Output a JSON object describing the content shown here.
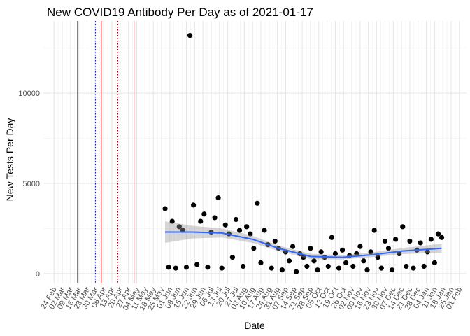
{
  "chart_data": {
    "type": "scatter",
    "title": "New COVID19 Antibody Per Day as of 2021-01-17",
    "x_label": "Date",
    "y_label": "New Tests Per Day",
    "xlim": [
      "2020-02-15",
      "2021-02-07"
    ],
    "ylim": [
      -550,
      14000
    ],
    "yticks": [
      0,
      5000,
      10000
    ],
    "xticks": [
      {
        "value": "2020-02-24",
        "label": "24 Feb"
      },
      {
        "value": "2020-03-02",
        "label": "02 Mar"
      },
      {
        "value": "2020-03-09",
        "label": "09 Mar"
      },
      {
        "value": "2020-03-16",
        "label": "16 Mar"
      },
      {
        "value": "2020-03-23",
        "label": "23 Mar"
      },
      {
        "value": "2020-03-30",
        "label": "30 Mar"
      },
      {
        "value": "2020-04-06",
        "label": "06 Apr"
      },
      {
        "value": "2020-04-13",
        "label": "13 Apr"
      },
      {
        "value": "2020-04-20",
        "label": "20 Apr"
      },
      {
        "value": "2020-04-27",
        "label": "27 Apr"
      },
      {
        "value": "2020-05-04",
        "label": "04 May"
      },
      {
        "value": "2020-05-11",
        "label": "11 May"
      },
      {
        "value": "2020-05-18",
        "label": "18 May"
      },
      {
        "value": "2020-05-25",
        "label": "25 May"
      },
      {
        "value": "2020-06-01",
        "label": "01 Jun"
      },
      {
        "value": "2020-06-08",
        "label": "08 Jun"
      },
      {
        "value": "2020-06-15",
        "label": "15 Jun"
      },
      {
        "value": "2020-06-22",
        "label": "22 Jun"
      },
      {
        "value": "2020-06-29",
        "label": "29 Jun"
      },
      {
        "value": "2020-07-06",
        "label": "06 Jul"
      },
      {
        "value": "2020-07-13",
        "label": "13 Jul"
      },
      {
        "value": "2020-07-20",
        "label": "20 Jul"
      },
      {
        "value": "2020-07-27",
        "label": "27 Jul"
      },
      {
        "value": "2020-08-03",
        "label": "03 Aug"
      },
      {
        "value": "2020-08-10",
        "label": "10 Aug"
      },
      {
        "value": "2020-08-17",
        "label": "17 Aug"
      },
      {
        "value": "2020-08-24",
        "label": "24 Aug"
      },
      {
        "value": "2020-08-31",
        "label": "31 Aug"
      },
      {
        "value": "2020-09-07",
        "label": "07 Sep"
      },
      {
        "value": "2020-09-14",
        "label": "14 Sep"
      },
      {
        "value": "2020-09-21",
        "label": "21 Sep"
      },
      {
        "value": "2020-09-28",
        "label": "28 Sep"
      },
      {
        "value": "2020-10-05",
        "label": "05 Oct"
      },
      {
        "value": "2020-10-12",
        "label": "12 Oct"
      },
      {
        "value": "2020-10-19",
        "label": "19 Oct"
      },
      {
        "value": "2020-10-26",
        "label": "26 Oct"
      },
      {
        "value": "2020-11-02",
        "label": "02 Nov"
      },
      {
        "value": "2020-11-09",
        "label": "09 Nov"
      },
      {
        "value": "2020-11-16",
        "label": "16 Nov"
      },
      {
        "value": "2020-11-23",
        "label": "23 Nov"
      },
      {
        "value": "2020-11-30",
        "label": "30 Nov"
      },
      {
        "value": "2020-12-07",
        "label": "07 Dec"
      },
      {
        "value": "2020-12-14",
        "label": "14 Dec"
      },
      {
        "value": "2020-12-21",
        "label": "21 Dec"
      },
      {
        "value": "2020-12-28",
        "label": "28 Dec"
      },
      {
        "value": "2021-01-04",
        "label": "04 Jan"
      },
      {
        "value": "2021-01-11",
        "label": "11 Jan"
      },
      {
        "value": "2021-01-18",
        "label": "18 Jan"
      },
      {
        "value": "2021-01-25",
        "label": "25 Jan"
      },
      {
        "value": "2021-02-01",
        "label": "01 Feb"
      }
    ],
    "grid": true,
    "vlines": [
      {
        "x": "2020-03-15",
        "color": "#000000",
        "dashed": false
      },
      {
        "x": "2020-03-30",
        "color": "#00008b",
        "dashed": true
      },
      {
        "x": "2020-04-04",
        "color": "#cc0000",
        "dashed": false
      },
      {
        "x": "2020-04-18",
        "color": "#8b0000",
        "dashed": true
      },
      {
        "x": "2020-05-02",
        "color": "#ffb6c1",
        "dashed": false
      }
    ],
    "series": [
      {
        "type": "scatter",
        "color": "#000000",
        "x": [
          "2020-05-28",
          "2020-05-31",
          "2020-06-03",
          "2020-06-06",
          "2020-06-09",
          "2020-06-12",
          "2020-06-15",
          "2020-06-18",
          "2020-06-21",
          "2020-06-24",
          "2020-06-27",
          "2020-06-30",
          "2020-07-03",
          "2020-07-06",
          "2020-07-09",
          "2020-07-12",
          "2020-07-15",
          "2020-07-18",
          "2020-07-21",
          "2020-07-24",
          "2020-07-27",
          "2020-07-30",
          "2020-08-02",
          "2020-08-05",
          "2020-08-08",
          "2020-08-11",
          "2020-08-14",
          "2020-08-17",
          "2020-08-20",
          "2020-08-23",
          "2020-08-26",
          "2020-08-29",
          "2020-09-01",
          "2020-09-04",
          "2020-09-07",
          "2020-09-10",
          "2020-09-13",
          "2020-09-16",
          "2020-09-19",
          "2020-09-22",
          "2020-09-25",
          "2020-09-28",
          "2020-10-01",
          "2020-10-04",
          "2020-10-07",
          "2020-10-10",
          "2020-10-13",
          "2020-10-16",
          "2020-10-19",
          "2020-10-22",
          "2020-10-25",
          "2020-10-28",
          "2020-10-31",
          "2020-11-03",
          "2020-11-06",
          "2020-11-09",
          "2020-11-12",
          "2020-11-15",
          "2020-11-18",
          "2020-11-21",
          "2020-11-24",
          "2020-11-27",
          "2020-11-30",
          "2020-12-03",
          "2020-12-06",
          "2020-12-09",
          "2020-12-12",
          "2020-12-15",
          "2020-12-18",
          "2020-12-21",
          "2020-12-24",
          "2020-12-27",
          "2020-12-30",
          "2021-01-02",
          "2021-01-05",
          "2021-01-08",
          "2021-01-11",
          "2021-01-14",
          "2021-01-17"
        ],
        "values": [
          3600,
          350,
          2900,
          300,
          2600,
          2400,
          350,
          13200,
          3800,
          500,
          2900,
          3300,
          350,
          2300,
          3100,
          4200,
          300,
          2700,
          2200,
          900,
          3000,
          2400,
          400,
          2600,
          2200,
          1400,
          3900,
          600,
          2400,
          1600,
          300,
          1800,
          1400,
          200,
          1200,
          700,
          1500,
          100,
          1100,
          900,
          400,
          1400,
          700,
          200,
          1200,
          900,
          400,
          2000,
          1100,
          300,
          1300,
          600,
          1000,
          400,
          1100,
          1500,
          700,
          200,
          1200,
          2400,
          900,
          300,
          1800,
          1400,
          200,
          1900,
          1100,
          2600,
          400,
          1800,
          300,
          1300,
          1700,
          400,
          1200,
          1900,
          600,
          2200,
          2000
        ]
      },
      {
        "type": "line",
        "color": "#3366ff",
        "band_color": "#999999",
        "x": [
          "2020-05-28",
          "2020-06-20",
          "2020-07-15",
          "2020-08-10",
          "2020-09-01",
          "2020-09-28",
          "2020-10-25",
          "2020-11-20",
          "2020-12-15",
          "2021-01-17"
        ],
        "values": [
          2300,
          2300,
          2250,
          1900,
          1400,
          950,
          900,
          1050,
          1250,
          1400
        ],
        "lower": [
          1700,
          1950,
          2000,
          1700,
          1250,
          800,
          780,
          920,
          1080,
          1150
        ],
        "upper": [
          2900,
          2650,
          2500,
          2100,
          1550,
          1100,
          1020,
          1180,
          1420,
          1650
        ]
      }
    ]
  }
}
